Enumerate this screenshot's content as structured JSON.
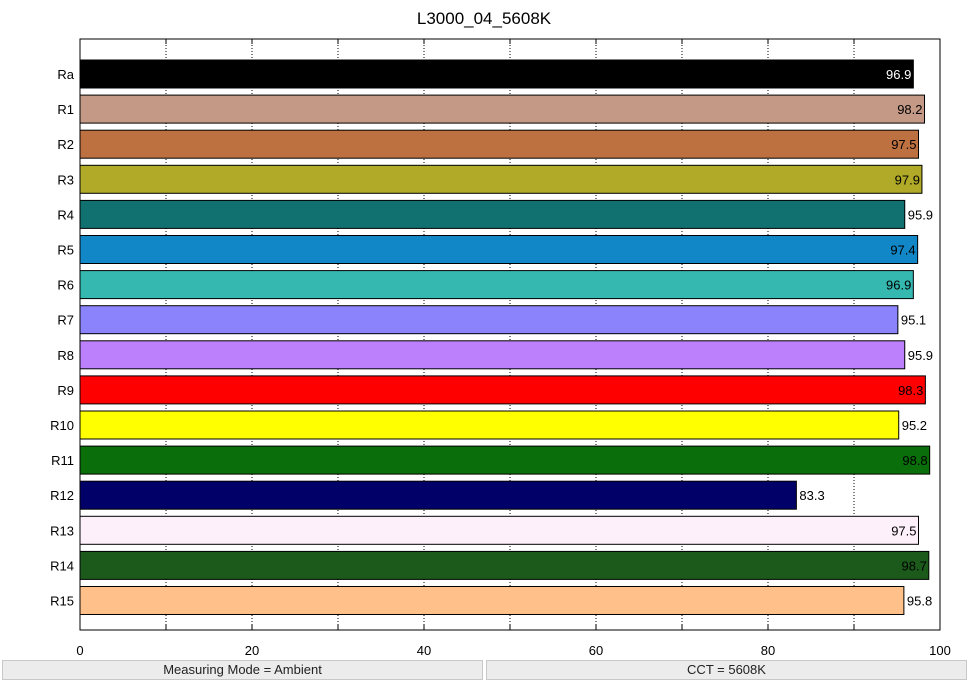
{
  "chart_data": {
    "type": "bar",
    "orientation": "horizontal",
    "title": "L3000_04_5608K",
    "xlabel": "",
    "ylabel": "",
    "xlim": [
      0,
      100
    ],
    "x_ticks": [
      0,
      20,
      40,
      60,
      80,
      100
    ],
    "grid": "vertical dotted lines every 10",
    "categories": [
      "Ra",
      "R1",
      "R2",
      "R3",
      "R4",
      "R5",
      "R6",
      "R7",
      "R8",
      "R9",
      "R10",
      "R11",
      "R12",
      "R13",
      "R14",
      "R15"
    ],
    "values": [
      96.9,
      98.2,
      97.5,
      97.9,
      95.9,
      97.4,
      96.9,
      95.1,
      95.9,
      98.3,
      95.2,
      98.8,
      83.3,
      97.5,
      98.7,
      95.8
    ],
    "colors": [
      "#000000",
      "#c49a87",
      "#bd7141",
      "#b0aa28",
      "#117070",
      "#1287c7",
      "#35b8b0",
      "#8a83fb",
      "#bd80fd",
      "#ff0000",
      "#ffff00",
      "#0a6e0a",
      "#000068",
      "#fef0fa",
      "#1b5a1b",
      "#ffc08a"
    ],
    "label_colors": [
      "#ffffff",
      "#000000",
      "#000000",
      "#000000",
      "#000000",
      "#000000",
      "#000000",
      "#000000",
      "#000000",
      "#000000",
      "#000000",
      "#000000",
      "#000000",
      "#000000",
      "#000000",
      "#000000"
    ]
  },
  "status": {
    "measuring_mode": "Measuring Mode = Ambient",
    "cct": "CCT = 5608K"
  }
}
